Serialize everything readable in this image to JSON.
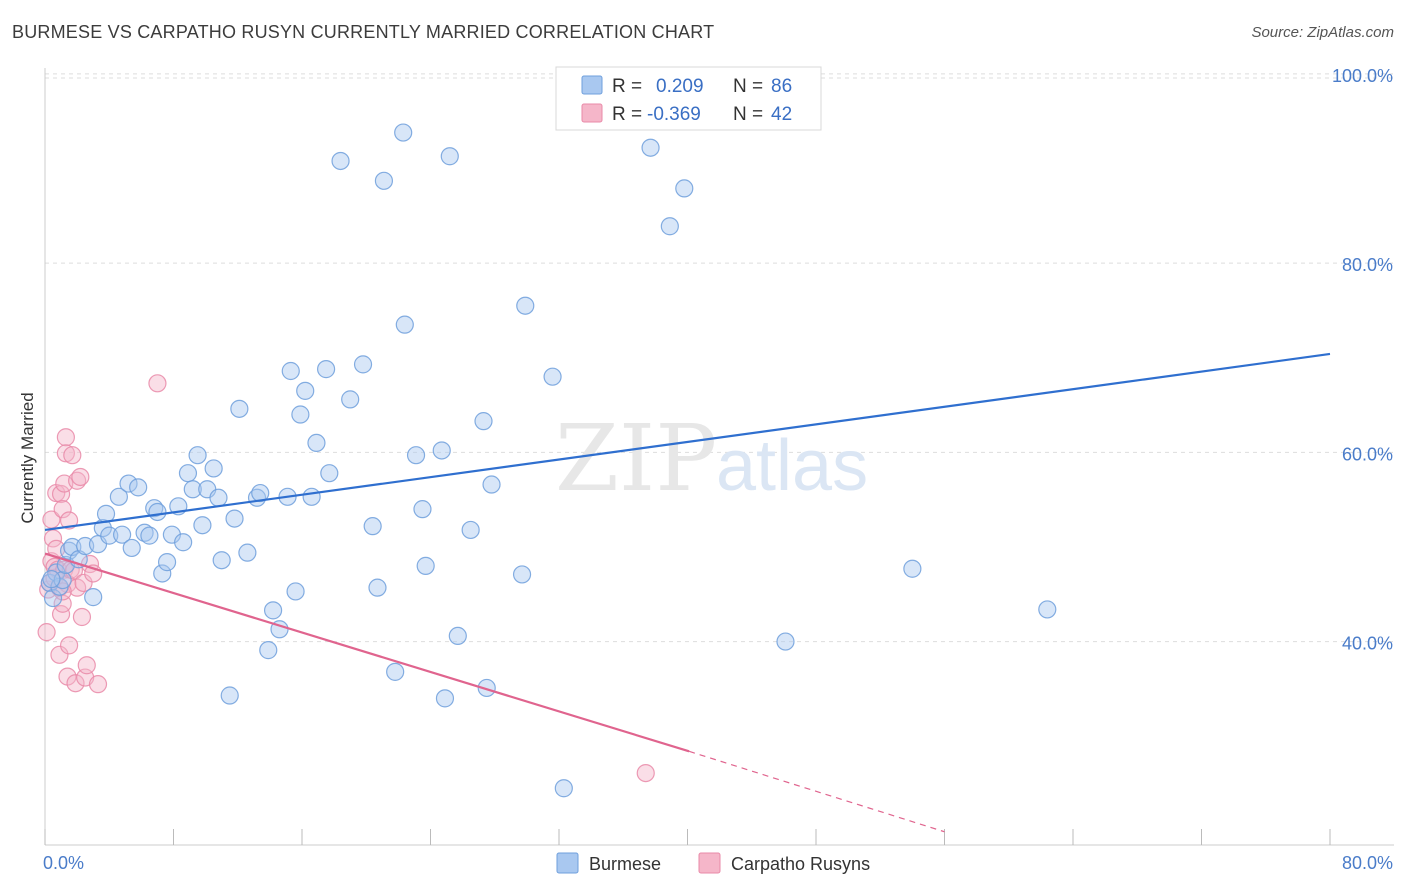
{
  "header": {
    "title": "BURMESE VS CARPATHO RUSYN CURRENTLY MARRIED CORRELATION CHART",
    "source": "Source: ZipAtlas.com"
  },
  "watermark": {
    "zip": "ZIP",
    "atlas": "atlas"
  },
  "legend": {
    "rows": [
      {
        "r_label": "R =",
        "r_value": "0.209",
        "n_label": "N =",
        "n_value": "86"
      },
      {
        "r_label": "R =",
        "r_value": "-0.369",
        "n_label": "N =",
        "n_value": "42"
      }
    ]
  },
  "bottom_legend": [
    "Burmese",
    "Carpatho Rusyns"
  ],
  "colors": {
    "burmese_fill": "#a9c8f0",
    "burmese_stroke": "#6f9fdc",
    "burmese_line": "#2f6fcf",
    "rusyn_fill": "#f5b6c9",
    "rusyn_stroke": "#e98aa8",
    "rusyn_line": "#e0648e",
    "tick_text": "#4a7cc9",
    "grid": "#dddddd"
  },
  "chart_data": {
    "type": "scatter",
    "title": "BURMESE VS CARPATHO RUSYN CURRENTLY MARRIED CORRELATION CHART",
    "ylabel": "Currently Married",
    "xlabel": "",
    "xlim": [
      0,
      80
    ],
    "ylim": [
      18.5,
      102
    ],
    "x_tick_labels": [
      "0.0%",
      "80.0%"
    ],
    "y_ticks": [
      40,
      60,
      80,
      100
    ],
    "y_tick_labels": [
      "40.0%",
      "60.0%",
      "80.0%",
      "100.0%"
    ],
    "grid": true,
    "legend_position": "top-center",
    "series": [
      {
        "name": "Burmese",
        "r": 0.209,
        "n": 86,
        "trend": {
          "x": [
            0,
            80
          ],
          "y": [
            51.8,
            70.4
          ]
        },
        "points": [
          [
            0.3,
            46.2
          ],
          [
            0.5,
            44.6
          ],
          [
            0.7,
            47.3
          ],
          [
            0.9,
            45.8
          ],
          [
            1.1,
            46.5
          ],
          [
            1.3,
            48.1
          ],
          [
            1.5,
            49.6
          ],
          [
            1.7,
            50.0
          ],
          [
            2.1,
            48.7
          ],
          [
            2.5,
            50.1
          ],
          [
            3.0,
            44.7
          ],
          [
            3.3,
            50.3
          ],
          [
            3.6,
            52.0
          ],
          [
            3.8,
            53.5
          ],
          [
            4.0,
            51.2
          ],
          [
            4.6,
            55.3
          ],
          [
            4.8,
            51.3
          ],
          [
            5.2,
            56.7
          ],
          [
            5.4,
            49.9
          ],
          [
            5.8,
            56.3
          ],
          [
            6.2,
            51.5
          ],
          [
            6.5,
            51.2
          ],
          [
            6.8,
            54.1
          ],
          [
            7.0,
            53.7
          ],
          [
            7.3,
            47.2
          ],
          [
            7.6,
            48.4
          ],
          [
            7.9,
            51.3
          ],
          [
            8.3,
            54.3
          ],
          [
            8.6,
            50.5
          ],
          [
            8.9,
            57.8
          ],
          [
            9.2,
            56.1
          ],
          [
            9.5,
            59.7
          ],
          [
            9.8,
            52.3
          ],
          [
            10.1,
            56.1
          ],
          [
            10.5,
            58.3
          ],
          [
            10.8,
            55.2
          ],
          [
            11.0,
            48.6
          ],
          [
            11.5,
            34.3
          ],
          [
            11.8,
            53.0
          ],
          [
            12.1,
            64.6
          ],
          [
            12.6,
            49.4
          ],
          [
            13.2,
            55.2
          ],
          [
            13.4,
            55.7
          ],
          [
            13.9,
            39.1
          ],
          [
            14.2,
            43.3
          ],
          [
            14.6,
            41.3
          ],
          [
            15.1,
            55.3
          ],
          [
            15.3,
            68.6
          ],
          [
            15.6,
            45.3
          ],
          [
            15.9,
            64.0
          ],
          [
            16.2,
            66.5
          ],
          [
            16.6,
            55.3
          ],
          [
            16.9,
            61.0
          ],
          [
            17.5,
            68.8
          ],
          [
            17.7,
            57.8
          ],
          [
            18.4,
            90.8
          ],
          [
            19.0,
            65.6
          ],
          [
            19.8,
            69.3
          ],
          [
            20.4,
            52.2
          ],
          [
            20.7,
            45.7
          ],
          [
            21.1,
            88.7
          ],
          [
            21.8,
            36.8
          ],
          [
            22.3,
            93.8
          ],
          [
            22.4,
            73.5
          ],
          [
            23.1,
            59.7
          ],
          [
            23.5,
            54.0
          ],
          [
            23.7,
            48.0
          ],
          [
            24.7,
            60.2
          ],
          [
            24.9,
            34.0
          ],
          [
            25.2,
            91.3
          ],
          [
            25.7,
            40.6
          ],
          [
            26.5,
            51.8
          ],
          [
            27.3,
            63.3
          ],
          [
            27.5,
            35.1
          ],
          [
            27.8,
            56.6
          ],
          [
            29.7,
            47.1
          ],
          [
            29.9,
            75.5
          ],
          [
            31.6,
            68.0
          ],
          [
            32.3,
            24.5
          ],
          [
            37.7,
            92.2
          ],
          [
            38.9,
            83.9
          ],
          [
            39.8,
            87.9
          ],
          [
            46.1,
            40.0
          ],
          [
            54.0,
            47.7
          ],
          [
            62.4,
            43.4
          ],
          [
            0.4,
            46.6
          ]
        ]
      },
      {
        "name": "Carpatho Rusyns",
        "r": -0.369,
        "n": 42,
        "trend": {
          "x": [
            0,
            40.1
          ],
          "y": [
            49.3,
            28.4
          ]
        },
        "trend_dashed": {
          "x": [
            40.1,
            56.0
          ],
          "y": [
            28.4,
            19.9
          ]
        },
        "points": [
          [
            0.1,
            41.0
          ],
          [
            0.2,
            45.5
          ],
          [
            0.3,
            46.2
          ],
          [
            0.4,
            48.5
          ],
          [
            0.4,
            52.9
          ],
          [
            0.5,
            50.9
          ],
          [
            0.6,
            47.9
          ],
          [
            0.6,
            46.7
          ],
          [
            0.7,
            55.7
          ],
          [
            0.7,
            49.8
          ],
          [
            0.8,
            47.6
          ],
          [
            0.9,
            38.6
          ],
          [
            0.9,
            45.7
          ],
          [
            1.0,
            42.9
          ],
          [
            1.0,
            55.6
          ],
          [
            1.1,
            54.0
          ],
          [
            1.1,
            44.0
          ],
          [
            1.2,
            56.7
          ],
          [
            1.2,
            47.6
          ],
          [
            1.3,
            61.6
          ],
          [
            1.3,
            59.9
          ],
          [
            1.4,
            46.1
          ],
          [
            1.4,
            36.3
          ],
          [
            1.5,
            39.6
          ],
          [
            1.5,
            52.8
          ],
          [
            1.6,
            47.6
          ],
          [
            1.7,
            59.7
          ],
          [
            1.8,
            47.5
          ],
          [
            1.9,
            35.6
          ],
          [
            2.0,
            57.0
          ],
          [
            2.0,
            45.7
          ],
          [
            2.2,
            57.4
          ],
          [
            2.3,
            42.6
          ],
          [
            2.4,
            46.2
          ],
          [
            2.5,
            36.2
          ],
          [
            2.6,
            37.5
          ],
          [
            2.8,
            48.2
          ],
          [
            3.0,
            47.2
          ],
          [
            3.3,
            35.5
          ],
          [
            7.0,
            67.3
          ],
          [
            37.4,
            26.1
          ],
          [
            1.1,
            45.3
          ]
        ]
      }
    ]
  }
}
